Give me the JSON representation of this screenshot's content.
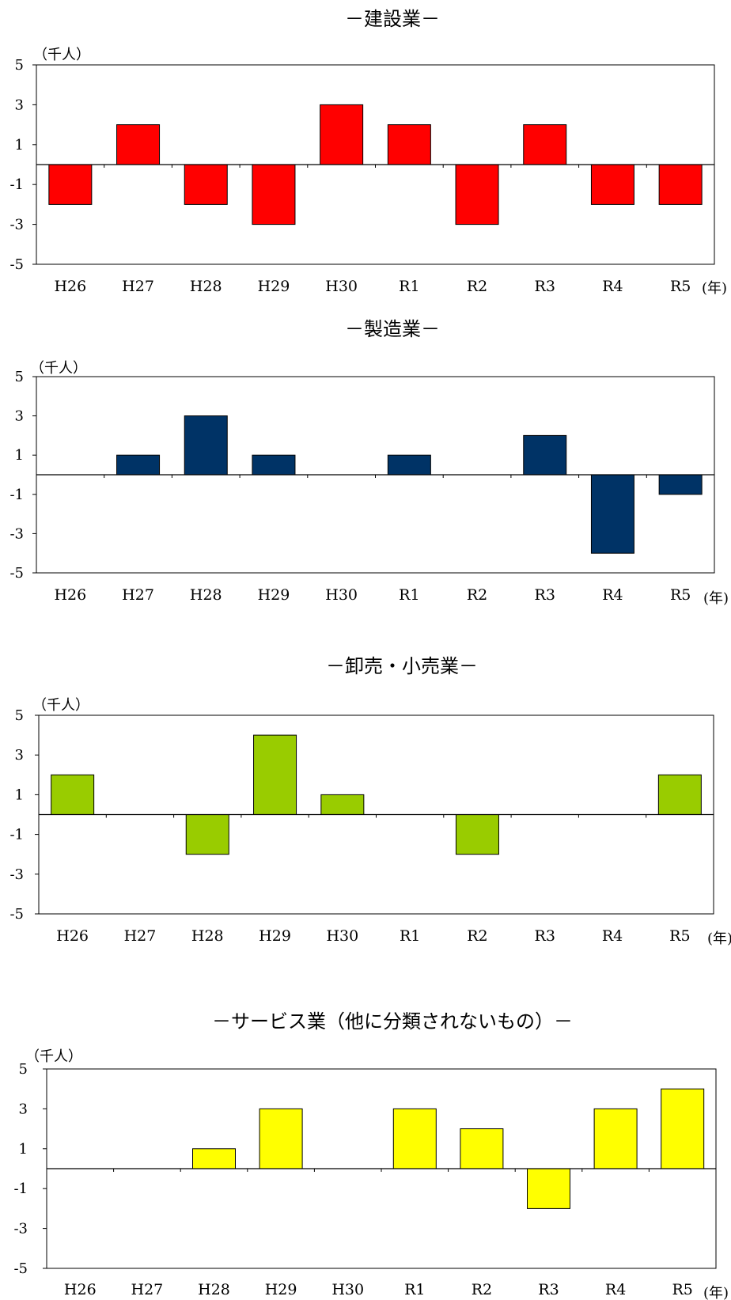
{
  "chart_data": [
    {
      "type": "bar",
      "title": "－建設業－",
      "ylabel": "（千人）",
      "unit_suffix": "(年)",
      "categories": [
        "H26",
        "H27",
        "H28",
        "H29",
        "H30",
        "R1",
        "R2",
        "R3",
        "R4",
        "R5"
      ],
      "values": [
        -2,
        2,
        -2,
        -3,
        3,
        2,
        -3,
        2,
        -2,
        -2
      ],
      "ylim": [
        -5,
        5
      ],
      "yticks": [
        "5",
        "3",
        "1",
        "-1",
        "-3",
        "-5"
      ],
      "bar_color": "#ff0000"
    },
    {
      "type": "bar",
      "title": "－製造業－",
      "ylabel": "（千人）",
      "unit_suffix": "(年)",
      "categories": [
        "H26",
        "H27",
        "H28",
        "H29",
        "H30",
        "R1",
        "R2",
        "R3",
        "R4",
        "R5"
      ],
      "values": [
        0,
        1,
        3,
        1,
        0,
        1,
        0,
        2,
        -4,
        -1
      ],
      "ylim": [
        -5,
        5
      ],
      "yticks": [
        "5",
        "3",
        "1",
        "-1",
        "-3",
        "-5"
      ],
      "bar_color": "#003366"
    },
    {
      "type": "bar",
      "title": "－卸売・小売業－",
      "ylabel": "（千人）",
      "unit_suffix": "(年)",
      "categories": [
        "H26",
        "H27",
        "H28",
        "H29",
        "H30",
        "R1",
        "R2",
        "R3",
        "R4",
        "R5"
      ],
      "values": [
        2,
        0,
        -2,
        4,
        1,
        0,
        -2,
        0,
        0,
        2
      ],
      "ylim": [
        -5,
        5
      ],
      "yticks": [
        "5",
        "3",
        "1",
        "-1",
        "-3",
        "-5"
      ],
      "bar_color": "#99cc00"
    },
    {
      "type": "bar",
      "title": "－サービス業（他に分類されないもの）－",
      "ylabel": "（千人）",
      "unit_suffix": "(年)",
      "categories": [
        "H26",
        "H27",
        "H28",
        "H29",
        "H30",
        "R1",
        "R2",
        "R3",
        "R4",
        "R5"
      ],
      "values": [
        0,
        0,
        1,
        3,
        0,
        3,
        2,
        -2,
        3,
        4
      ],
      "ylim": [
        -5,
        5
      ],
      "yticks": [
        "5",
        "3",
        "1",
        "-1",
        "-3",
        "-5"
      ],
      "bar_color": "#ffff00"
    }
  ]
}
